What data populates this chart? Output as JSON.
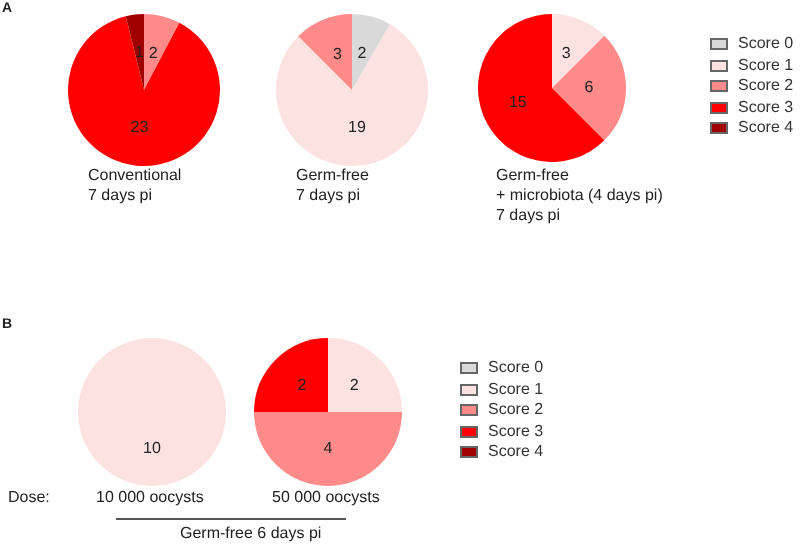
{
  "chart_data": [
    {
      "type": "pie",
      "title": "Conventional\n7 days pi",
      "categories": [
        null,
        null,
        null,
        null,
        null
      ],
      "values": [
        0,
        0,
        2,
        23,
        1
      ],
      "value_labels": [
        null,
        null,
        "2",
        "23",
        "1"
      ],
      "colors": [
        "#d9d9d9",
        "#fde2e2",
        "#ff8a8a",
        "#ff0000",
        "#a00000"
      ],
      "annotations": [
        "A"
      ]
    },
    {
      "type": "pie",
      "title": "Germ-free\n7 days pi",
      "categories": [
        null,
        null,
        null,
        null,
        null
      ],
      "values": [
        2,
        19,
        3,
        0,
        0
      ],
      "value_labels": [
        "2",
        "19",
        "3",
        null,
        null
      ],
      "colors": [
        "#d9d9d9",
        "#fde2e2",
        "#ff8a8a",
        "#ff0000",
        "#a00000"
      ]
    },
    {
      "type": "pie",
      "title": "Germ-free\n+ microbiota (4 days pi)\n7 days pi",
      "categories": [
        "Score 0",
        "Score 1",
        "Score 2",
        "Score 3",
        "Score 4"
      ],
      "values": [
        0,
        3,
        6,
        15,
        0
      ],
      "value_labels": [
        null,
        "3",
        "6",
        "15",
        null
      ],
      "colors": [
        "#d9d9d9",
        "#fde2e2",
        "#ff8a8a",
        "#ff0000",
        "#a00000"
      ],
      "legend": "right"
    },
    {
      "type": "pie",
      "title": "10 000 oocysts",
      "categories": [
        null,
        null,
        null,
        null,
        null
      ],
      "values": [
        0,
        10,
        0,
        0,
        0
      ],
      "value_labels": [
        null,
        "10",
        null,
        null,
        null
      ],
      "colors": [
        "#d9d9d9",
        "#fde2e2",
        "#ff8a8a",
        "#ff0000",
        "#a00000"
      ],
      "annotations": [
        "B",
        "Dose:"
      ]
    },
    {
      "type": "pie",
      "title": "50 000 oocysts",
      "categories": [
        "Score 0",
        "Score 1",
        "Score 2",
        "Score 3",
        "Score 4"
      ],
      "values": [
        0,
        2,
        4,
        2,
        0
      ],
      "value_labels": [
        null,
        "2",
        "4",
        "2",
        null
      ],
      "colors": [
        "#d9d9d9",
        "#fde2e2",
        "#ff8a8a",
        "#ff0000",
        "#a00000"
      ],
      "legend": "right",
      "annotations": [
        "Germ-free 6 days pi"
      ]
    }
  ]
}
